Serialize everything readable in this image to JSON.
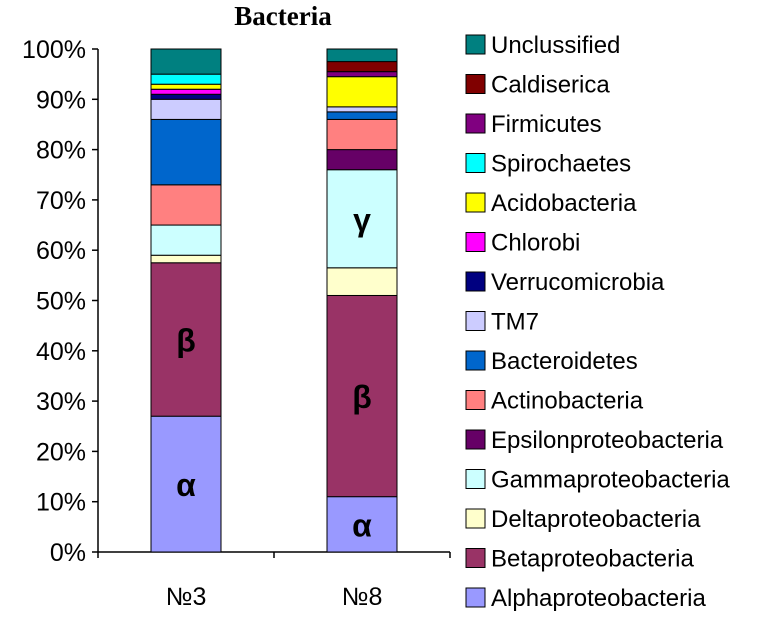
{
  "chart_data": {
    "type": "bar",
    "stacked": true,
    "percent": true,
    "title": "Bacteria",
    "categories": [
      "№3",
      "№8"
    ],
    "yticks": [
      "0%",
      "10%",
      "20%",
      "30%",
      "40%",
      "50%",
      "60%",
      "70%",
      "80%",
      "90%",
      "100%"
    ],
    "ylim": [
      0,
      100
    ],
    "grid": false,
    "legend_position": "right",
    "series": [
      {
        "name": "Alphaproteobacteria",
        "color": "#9999FF",
        "values": [
          27,
          11
        ]
      },
      {
        "name": "Betaproteobacteria",
        "color": "#993366",
        "values": [
          30.5,
          40
        ]
      },
      {
        "name": "Deltaproteobacteria",
        "color": "#FFFFCC",
        "values": [
          1.5,
          5.5
        ]
      },
      {
        "name": "Gammaproteobacteria",
        "color": "#CCFFFF",
        "values": [
          6,
          19.5
        ]
      },
      {
        "name": "Epsilonproteobacteria",
        "color": "#660066",
        "values": [
          0,
          4
        ]
      },
      {
        "name": "Actinobacteria",
        "color": "#FF8080",
        "values": [
          8,
          6
        ]
      },
      {
        "name": "Bacteroidetes",
        "color": "#0066CC",
        "values": [
          13,
          1.5
        ]
      },
      {
        "name": "TM7",
        "color": "#CCCCFF",
        "values": [
          4,
          1
        ]
      },
      {
        "name": "Verrucomicrobia",
        "color": "#000080",
        "values": [
          1,
          0
        ]
      },
      {
        "name": "Chlorobi",
        "color": "#FF00FF",
        "values": [
          1,
          0
        ]
      },
      {
        "name": "Acidobacteria",
        "color": "#FFFF00",
        "values": [
          1,
          6
        ]
      },
      {
        "name": "Spirochaetes",
        "color": "#00FFFF",
        "values": [
          2,
          0
        ]
      },
      {
        "name": "Firmicutes",
        "color": "#800080",
        "values": [
          0,
          1
        ]
      },
      {
        "name": "Caldiserica",
        "color": "#800000",
        "values": [
          0,
          2
        ]
      },
      {
        "name": "Unclussified",
        "color": "#008080",
        "values": [
          5,
          2.5
        ]
      }
    ],
    "segment_labels": [
      {
        "category": "№3",
        "series": "Alphaproteobacteria",
        "text": "α"
      },
      {
        "category": "№3",
        "series": "Betaproteobacteria",
        "text": "β"
      },
      {
        "category": "№8",
        "series": "Alphaproteobacteria",
        "text": "α"
      },
      {
        "category": "№8",
        "series": "Betaproteobacteria",
        "text": "β"
      },
      {
        "category": "№8",
        "series": "Gammaproteobacteria",
        "text": "γ"
      }
    ]
  }
}
